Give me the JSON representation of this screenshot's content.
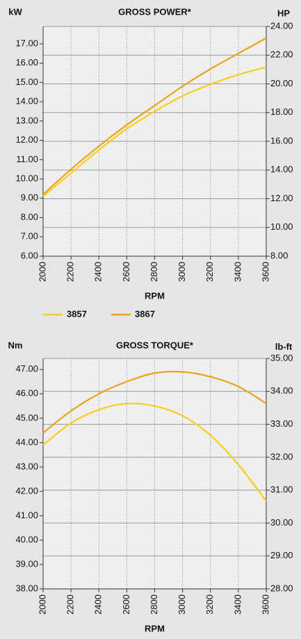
{
  "chart_data": [
    {
      "type": "line",
      "title": "GROSS POWER*",
      "ylabel": "kW",
      "y2label": "HP",
      "xlabel": "RPM",
      "x": [
        2000,
        2200,
        2400,
        2600,
        2800,
        3000,
        3200,
        3400,
        3600
      ],
      "series": [
        {
          "name": "3857",
          "color": "#f7cf1a",
          "values": [
            9.1,
            10.3,
            11.5,
            12.6,
            13.5,
            14.3,
            14.9,
            15.4,
            15.8
          ]
        },
        {
          "name": "3867",
          "color": "#e9a41c",
          "values": [
            9.2,
            10.5,
            11.7,
            12.8,
            13.8,
            14.8,
            15.7,
            16.5,
            17.3
          ]
        }
      ],
      "xlim": [
        2000,
        3600
      ],
      "xticks": [
        2000,
        2200,
        2400,
        2600,
        2800,
        3000,
        3200,
        3400,
        3600
      ],
      "ylim": [
        6,
        17.9
      ],
      "yticks": [
        {
          "value": 6,
          "label": "6.00"
        },
        {
          "value": 7,
          "label": "7.00"
        },
        {
          "value": 8,
          "label": "8.00"
        },
        {
          "value": 9,
          "label": "9.00"
        },
        {
          "value": 10,
          "label": "10.00"
        },
        {
          "value": 11,
          "label": "11.00"
        },
        {
          "value": 12,
          "label": "12.00"
        },
        {
          "value": 13,
          "label": "13.00"
        },
        {
          "value": 14,
          "label": "14.00"
        },
        {
          "value": 15,
          "label": "15.00"
        },
        {
          "value": 16,
          "label": "16.00"
        },
        {
          "value": 17,
          "label": "17.00"
        }
      ],
      "y2lim": [
        8,
        24
      ],
      "y2ticks": [
        {
          "value": 8,
          "label": "8.00"
        },
        {
          "value": 10,
          "label": "10.00"
        },
        {
          "value": 12,
          "label": "12.00"
        },
        {
          "value": 14,
          "label": "14.00"
        },
        {
          "value": 16,
          "label": "16.00"
        },
        {
          "value": 18,
          "label": "18.00"
        },
        {
          "value": 20,
          "label": "20.00"
        },
        {
          "value": 22,
          "label": "22.00"
        },
        {
          "value": 24,
          "label": "24.00"
        }
      ],
      "grid": true
    },
    {
      "type": "line",
      "title": "GROSS TORQUE*",
      "ylabel": "Nm",
      "y2label": "lb-ft",
      "xlabel": "RPM",
      "x": [
        2000,
        2200,
        2400,
        2600,
        2800,
        3000,
        3200,
        3400,
        3600
      ],
      "series": [
        {
          "name": "3857",
          "color": "#f7cf1a",
          "values": [
            43.9,
            44.8,
            45.35,
            45.6,
            45.5,
            45.1,
            44.3,
            43.1,
            41.6
          ]
        },
        {
          "name": "3867",
          "color": "#e9a41c",
          "values": [
            44.4,
            45.3,
            46.0,
            46.5,
            46.85,
            46.9,
            46.7,
            46.3,
            45.6
          ]
        }
      ],
      "xlim": [
        2000,
        3600
      ],
      "xticks": [
        2000,
        2200,
        2400,
        2600,
        2800,
        3000,
        3200,
        3400,
        3600
      ],
      "ylim": [
        38,
        47.45
      ],
      "yticks": [
        {
          "value": 38,
          "label": "38.00"
        },
        {
          "value": 39,
          "label": "39.00"
        },
        {
          "value": 40,
          "label": "40.00"
        },
        {
          "value": 41,
          "label": "41.00"
        },
        {
          "value": 42,
          "label": "42.00"
        },
        {
          "value": 43,
          "label": "43.00"
        },
        {
          "value": 44,
          "label": "44.00"
        },
        {
          "value": 45,
          "label": "45.00"
        },
        {
          "value": 46,
          "label": "46.00"
        },
        {
          "value": 47,
          "label": "47.00"
        }
      ],
      "y2lim": [
        28,
        35
      ],
      "y2ticks": [
        {
          "value": 28,
          "label": "28.00"
        },
        {
          "value": 29,
          "label": "29.00"
        },
        {
          "value": 30,
          "label": "30.00"
        },
        {
          "value": 31,
          "label": "31.00"
        },
        {
          "value": 32,
          "label": "32.00"
        },
        {
          "value": 33,
          "label": "33.00"
        },
        {
          "value": 34,
          "label": "34.00"
        },
        {
          "value": 35,
          "label": "35.00"
        }
      ],
      "grid": true
    }
  ]
}
